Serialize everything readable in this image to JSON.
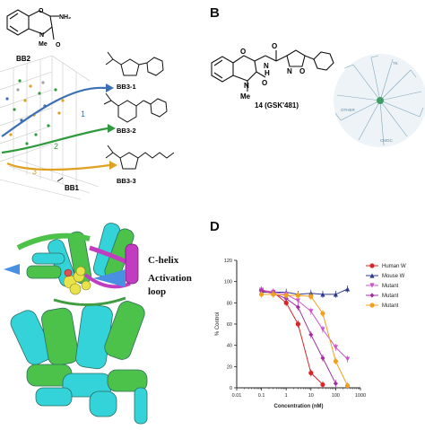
{
  "panel_labels": {
    "b": "B",
    "d": "D"
  },
  "panel_a": {
    "bb2_label": "BB2",
    "bb1_label": "BB1",
    "bb2_group_nh2": "NH₂",
    "bb2_group_me": "Me",
    "bb2_group_n": "N",
    "bb2_group_o": "O",
    "trajectories": [
      {
        "label": "1",
        "color": "#3c6fb4"
      },
      {
        "label": "2",
        "color": "#2e9a3c"
      },
      {
        "label": "3",
        "color": "#e0a020"
      }
    ],
    "fragments": [
      {
        "label": "BB3-1"
      },
      {
        "label": "BB3-2"
      },
      {
        "label": "BB3-3"
      }
    ]
  },
  "panel_b": {
    "compound_label": "14 (GSK'481)",
    "atom_me": "Me",
    "atom_n": "N",
    "atom_o": "O",
    "atom_h": "H",
    "kinome_labels": [
      "TK",
      "CMGC",
      "OTHER"
    ]
  },
  "panel_c": {
    "annotations": [
      {
        "label": "C-helix"
      },
      {
        "label": "Activation"
      },
      {
        "label": "loop"
      }
    ]
  },
  "chart_data": {
    "type": "line",
    "ylabel": "% Control",
    "xlabel": "Concentration (nM)",
    "xscale": "log",
    "xlim": [
      0.01,
      1000
    ],
    "ylim": [
      0,
      120
    ],
    "xticks": [
      "0.01",
      "0.1",
      "1",
      "10",
      "100",
      "1000"
    ],
    "yticks": [
      "0",
      "20",
      "40",
      "60",
      "80",
      "100",
      "120"
    ],
    "series": [
      {
        "name": "Human W",
        "color": "#d62728",
        "marker": "circle",
        "x": [
          0.1,
          0.3,
          1,
          3,
          10,
          30
        ],
        "y": [
          92,
          90,
          80,
          60,
          14,
          3
        ]
      },
      {
        "name": "Mouse W",
        "color": "#2f3a8c",
        "marker": "triangle",
        "x": [
          0.1,
          0.3,
          1,
          3,
          10,
          30,
          100,
          300
        ],
        "y": [
          90,
          90,
          90,
          88,
          89,
          88,
          88,
          93
        ]
      },
      {
        "name": "Mutant",
        "color": "#cc55cc",
        "marker": "triangle-down",
        "x": [
          0.1,
          0.3,
          1,
          3,
          10,
          30,
          100,
          300
        ],
        "y": [
          92,
          90,
          88,
          82,
          72,
          55,
          38,
          27
        ]
      },
      {
        "name": "Mutant",
        "color": "#a030a0",
        "marker": "diamond",
        "x": [
          0.1,
          0.3,
          1,
          3,
          10,
          30,
          100
        ],
        "y": [
          91,
          89,
          84,
          76,
          50,
          28,
          4
        ]
      },
      {
        "name": "Mutant",
        "color": "#f0a020",
        "marker": "circle",
        "x": [
          0.1,
          0.3,
          1,
          3,
          10,
          30,
          100,
          300
        ],
        "y": [
          88,
          88,
          87,
          87,
          86,
          70,
          25,
          2
        ]
      }
    ]
  }
}
